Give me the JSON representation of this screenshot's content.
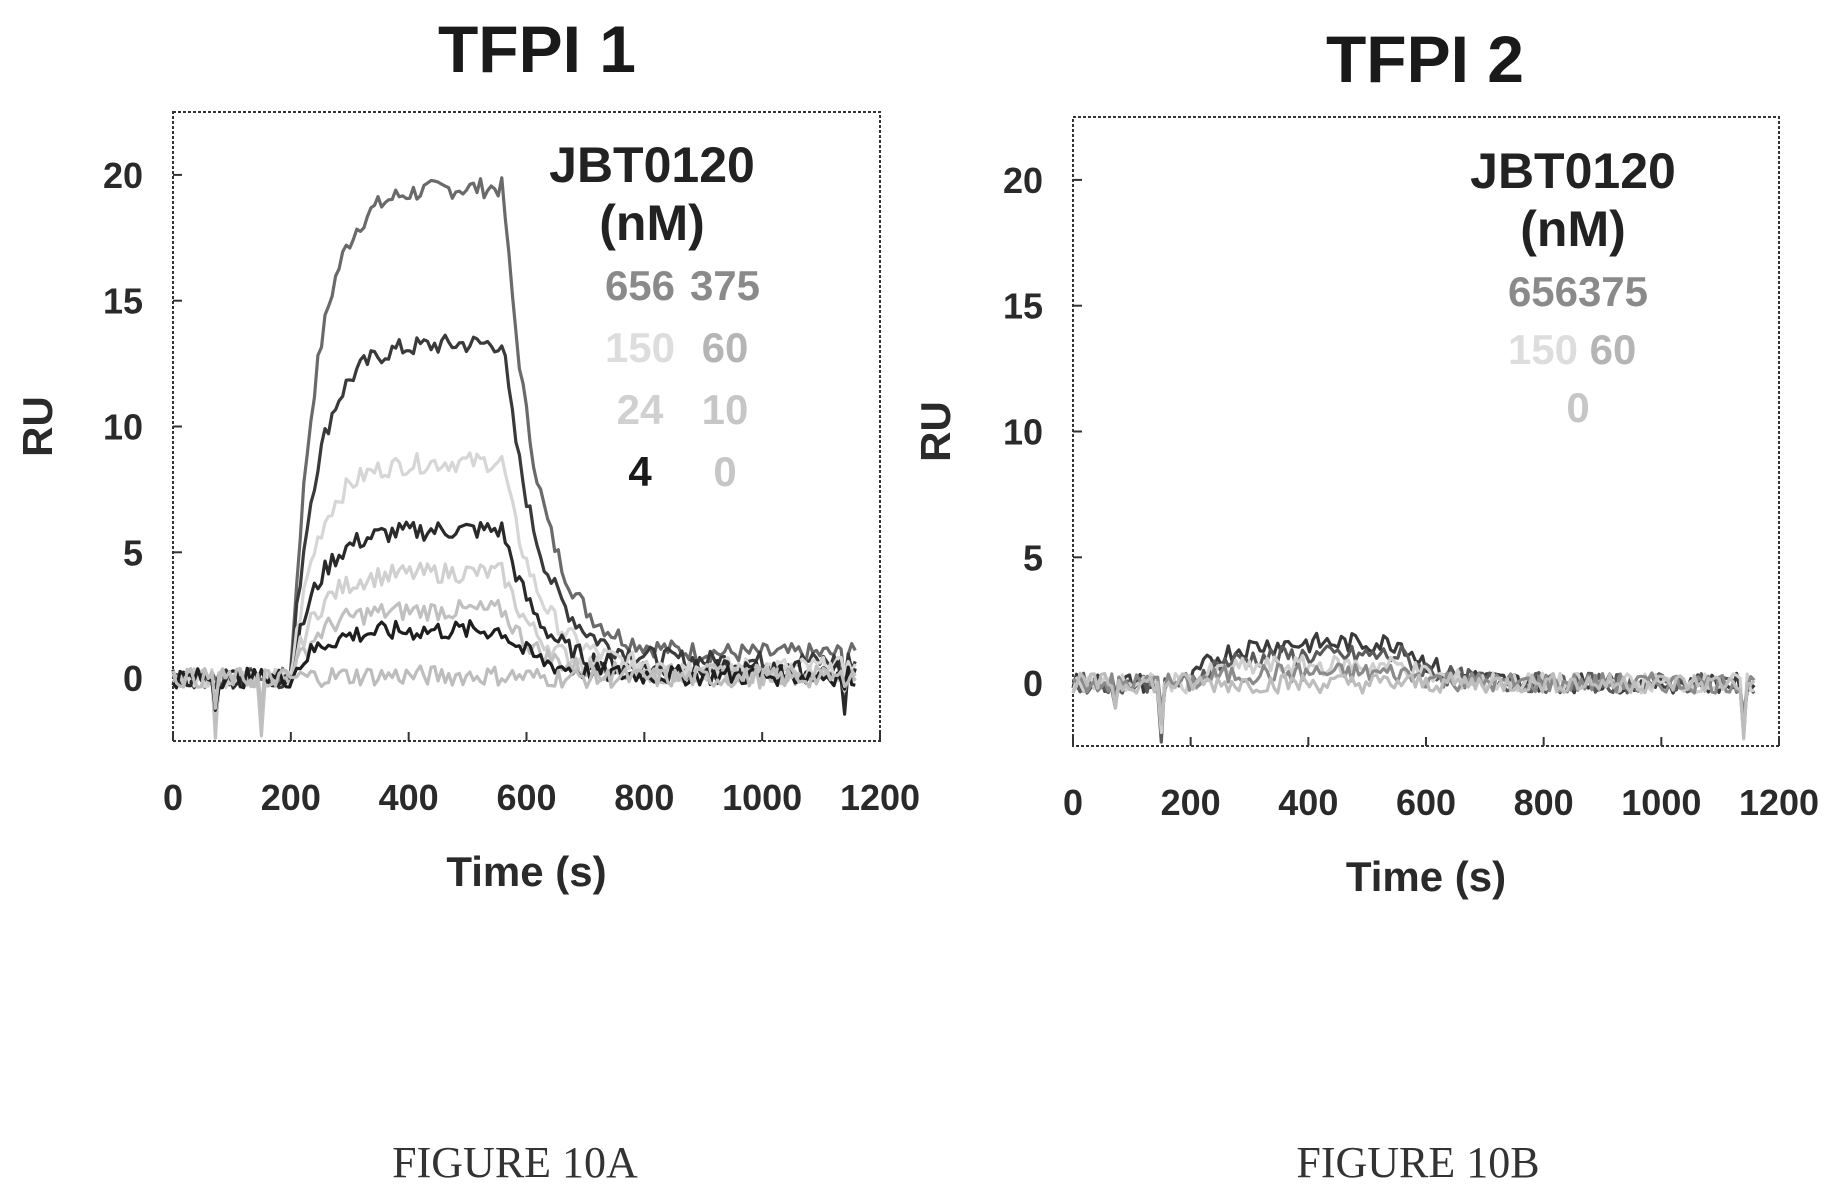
{
  "chart_data": [
    {
      "type": "line",
      "title": "TFPI 1",
      "xlabel": "Time (s)",
      "ylabel": "RU",
      "xlim": [
        0,
        1200
      ],
      "ylim": [
        -2.5,
        22.5
      ],
      "x_ticks": [
        "0",
        "200",
        "400",
        "600",
        "800",
        "1000",
        "1200"
      ],
      "y_ticks": [
        "0",
        "5",
        "10",
        "15",
        "20"
      ],
      "grid": false,
      "legend_placement": "top-right",
      "legend_title": [
        "JBT0120",
        "(nM)"
      ],
      "legend_entries": [
        {
          "label": "656",
          "color": "#8a8a8a"
        },
        {
          "label": "375",
          "color": "#8a8a8a"
        },
        {
          "label": "150",
          "color": "#dddddd"
        },
        {
          "label": "60",
          "color": "#b5b5b5"
        },
        {
          "label": "24",
          "color": "#d0d0d0"
        },
        {
          "label": "10",
          "color": "#c6c6c6"
        },
        {
          "label": "4",
          "color": "#1a1a1a"
        },
        {
          "label": "0",
          "color": "#c6c6c6"
        }
      ],
      "series": [
        {
          "name": "656",
          "color": "#6a6a6a",
          "plateau": 19.5
        },
        {
          "name": "375",
          "color": "#3a3a3a",
          "plateau": 13.3
        },
        {
          "name": "150",
          "color": "#d6d6d6",
          "plateau": 8.6
        },
        {
          "name": "60",
          "color": "#2a2a2a",
          "plateau": 5.9
        },
        {
          "name": "24",
          "color": "#d0d0d0",
          "plateau": 4.2
        },
        {
          "name": "10",
          "color": "#c0c0c0",
          "plateau": 2.7
        },
        {
          "name": "4",
          "color": "#1e1e1e",
          "plateau": 1.9
        },
        {
          "name": "0",
          "color": "#bdbdbd",
          "plateau": 0.1
        }
      ],
      "injection_start": 200,
      "injection_end": 560,
      "end_time": 1160
    },
    {
      "type": "line",
      "title": "TFPI 2",
      "xlabel": "Time (s)",
      "ylabel": "RU",
      "xlim": [
        0,
        1200
      ],
      "ylim": [
        -2.5,
        22.5
      ],
      "x_ticks": [
        "0",
        "200",
        "400",
        "600",
        "800",
        "1000",
        "1200"
      ],
      "y_ticks": [
        "0",
        "5",
        "10",
        "15",
        "20"
      ],
      "grid": false,
      "legend_placement": "top-right",
      "legend_title": [
        "JBT0120",
        "(nM)"
      ],
      "legend_entries": [
        {
          "label": "656",
          "color": "#8a8a8a"
        },
        {
          "label": "375",
          "color": "#8a8a8a"
        },
        {
          "label": "150",
          "color": "#dddddd"
        },
        {
          "label": "60",
          "color": "#b5b5b5"
        },
        {
          "label": "0",
          "color": "#c6c6c6"
        }
      ],
      "series": [
        {
          "name": "656",
          "color": "#3a3a3a",
          "plateau": 1.6
        },
        {
          "name": "375",
          "color": "#5a5a5a",
          "plateau": 1.1
        },
        {
          "name": "150",
          "color": "#cfcfcf",
          "plateau": 0.7
        },
        {
          "name": "60",
          "color": "#8a8a8a",
          "plateau": 0.4
        },
        {
          "name": "0",
          "color": "#bdbdbd",
          "plateau": 0.0
        }
      ],
      "injection_start": 200,
      "injection_end": 560,
      "end_time": 1160
    }
  ],
  "captions": [
    "FIGURE 10A",
    "FIGURE 10B"
  ]
}
